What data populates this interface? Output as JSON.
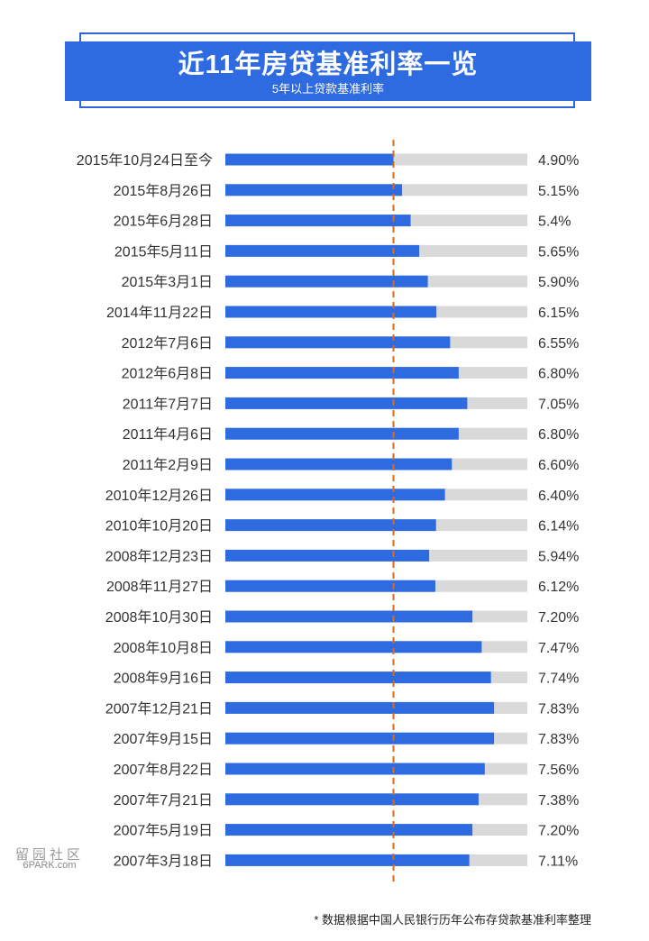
{
  "header": {
    "title": "近11年房贷基准利率一览",
    "subtitle": "5年以上贷款基准利率"
  },
  "chart_data": {
    "type": "bar",
    "orientation": "horizontal",
    "title": "近11年房贷基准利率一览",
    "subtitle": "5年以上贷款基准利率",
    "categories": [
      "2015年10月24日至今",
      "2015年8月26日",
      "2015年6月28日",
      "2015年5月11日",
      "2015年3月1日",
      "2014年11月22日",
      "2012年7月6日",
      "2012年6月8日",
      "2011年7月7日",
      "2011年4月6日",
      "2011年2月9日",
      "2010年12月26日",
      "2010年10月20日",
      "2008年12月23日",
      "2008年11月27日",
      "2008年10月30日",
      "2008年10月8日",
      "2008年9月16日",
      "2007年12月21日",
      "2007年9月15日",
      "2007年8月22日",
      "2007年7月21日",
      "2007年5月19日",
      "2007年3月18日"
    ],
    "values": [
      4.9,
      5.15,
      5.4,
      5.65,
      5.9,
      6.15,
      6.55,
      6.8,
      7.05,
      6.8,
      6.6,
      6.4,
      6.14,
      5.94,
      6.12,
      7.2,
      7.47,
      7.74,
      7.83,
      7.83,
      7.56,
      7.38,
      7.2,
      7.11
    ],
    "value_labels": [
      "4.90%",
      "5.15%",
      "5.4%",
      "5.65%",
      "5.90%",
      "6.15%",
      "6.55%",
      "6.80%",
      "7.05%",
      "6.80%",
      "6.60%",
      "6.40%",
      "6.14%",
      "5.94%",
      "6.12%",
      "7.20%",
      "7.47%",
      "7.74%",
      "7.83%",
      "7.83%",
      "7.56%",
      "7.38%",
      "7.20%",
      "7.11%"
    ],
    "reference_line": 4.9,
    "xlim": [
      0,
      8.8
    ],
    "colors": {
      "bar": "#2f6be0",
      "track": "#d9d9d9",
      "reference": "#d96a1c"
    }
  },
  "watermark": {
    "chars": "留园社区",
    "site": "6PARK.com"
  },
  "footnote": "* 数据根据中国人民银行历年公布存贷款基准利率整理"
}
